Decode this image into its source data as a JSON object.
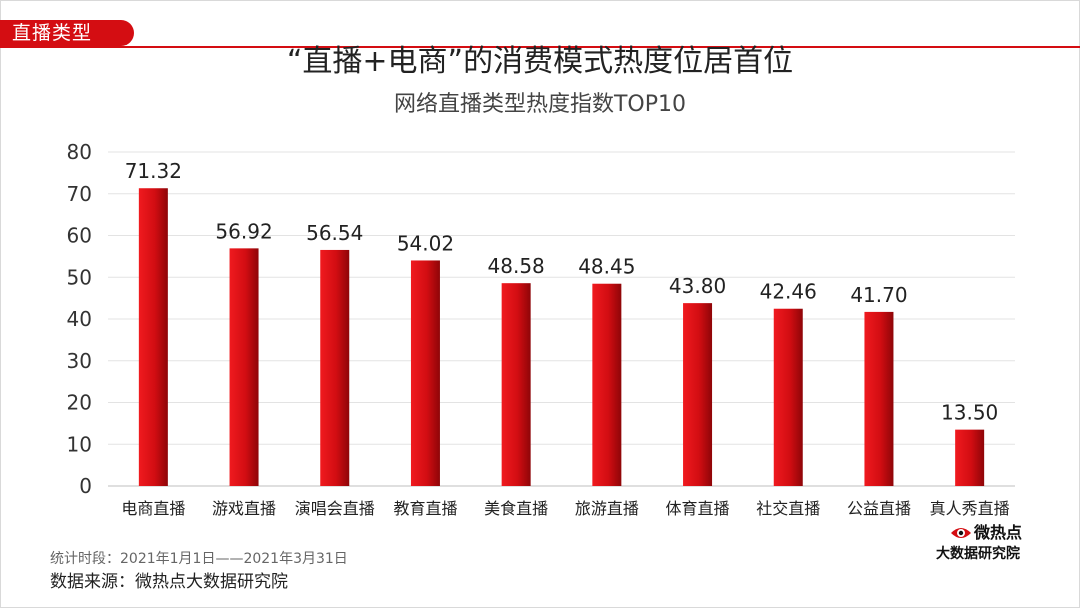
{
  "header": {
    "section_tag": "直播类型",
    "title": "“直播+电商”的消费模式热度位居首位",
    "subtitle": "网络直播类型热度指数TOP10"
  },
  "chart_data": {
    "type": "bar",
    "title": "网络直播类型热度指数TOP10",
    "categories": [
      "电商直播",
      "游戏直播",
      "演唱会直播",
      "教育直播",
      "美食直播",
      "旅游直播",
      "体育直播",
      "社交直播",
      "公益直播",
      "真人秀直播"
    ],
    "values": [
      71.32,
      56.92,
      56.54,
      54.02,
      48.58,
      48.45,
      43.8,
      42.46,
      41.7,
      13.5
    ],
    "value_labels": [
      "71.32",
      "56.92",
      "56.54",
      "54.02",
      "48.58",
      "48.45",
      "43.80",
      "42.46",
      "41.70",
      "13.50"
    ],
    "ylim": [
      0,
      80
    ],
    "yticks": [
      "0",
      "10",
      "20",
      "30",
      "40",
      "50",
      "60",
      "70",
      "80"
    ],
    "grid": true,
    "legend": "none",
    "bar_color": "#d40d12"
  },
  "footer": {
    "period": "统计时段：2021年1月1日——2021年3月31日",
    "source": "数据来源：微热点大数据研究院"
  },
  "logo": {
    "name": "微热点",
    "subtitle": "大数据研究院",
    "icon": "eye-icon"
  }
}
